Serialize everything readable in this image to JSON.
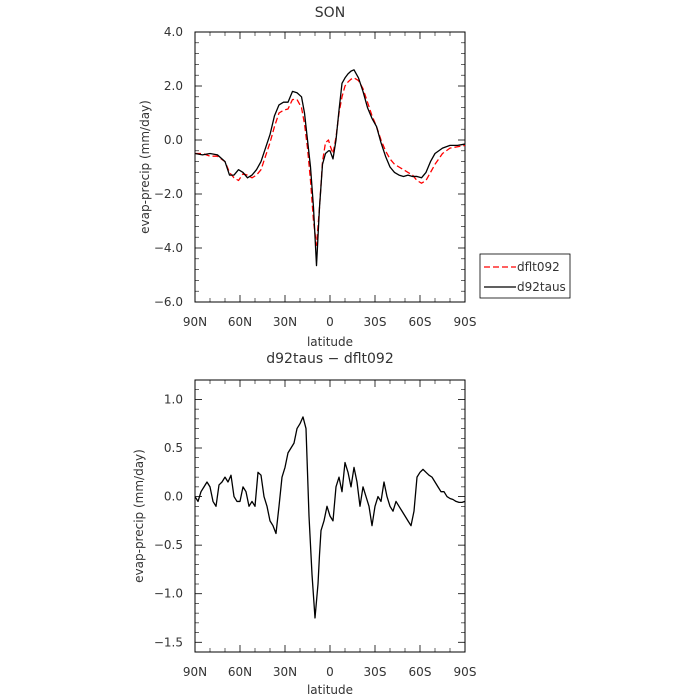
{
  "chart_data": [
    {
      "type": "line",
      "title": "SON",
      "xlabel": "latitude",
      "ylabel": "evap-precip (mm/day)",
      "xlim": [
        90,
        -90
      ],
      "ylim": [
        -6,
        4
      ],
      "x_ticks": [
        90,
        60,
        30,
        0,
        -30,
        -60,
        -90
      ],
      "x_tick_labels": [
        "90N",
        "60N",
        "30N",
        "0",
        "30S",
        "60S",
        "90S"
      ],
      "y_ticks": [
        4,
        2,
        0,
        -2,
        -4,
        -6
      ],
      "y_tick_labels": [
        "4.0",
        "2.0",
        "0.0",
        "−2.0",
        "−4.0",
        "−6.0"
      ],
      "legend_position": "outside-right-bottom",
      "series": [
        {
          "name": "dflt092",
          "color": "#ff0000",
          "dash": "dashed",
          "x": [
            90,
            85,
            80,
            75,
            70,
            67,
            64,
            61,
            58,
            55,
            52,
            49,
            46,
            43,
            40,
            37,
            34,
            31,
            28,
            25,
            22,
            19,
            17,
            15,
            13,
            11,
            9,
            7,
            5,
            3,
            1,
            0,
            -2,
            -4,
            -6,
            -8,
            -10,
            -12,
            -14,
            -16,
            -19,
            -22,
            -25,
            -28,
            -31,
            -34,
            -37,
            -40,
            -43,
            -46,
            -49,
            -52,
            -55,
            -58,
            -61,
            -64,
            -67,
            -70,
            -75,
            -80,
            -85,
            -90
          ],
          "y": [
            -0.5,
            -0.5,
            -0.6,
            -0.6,
            -0.8,
            -1.2,
            -1.4,
            -1.5,
            -1.25,
            -1.3,
            -1.4,
            -1.3,
            -1.1,
            -0.6,
            -0.1,
            0.5,
            1.0,
            1.1,
            1.15,
            1.5,
            1.5,
            1.2,
            0.6,
            -0.3,
            -1.5,
            -3.0,
            -3.9,
            -2.5,
            -0.8,
            -0.1,
            0.0,
            -0.2,
            -0.5,
            0.1,
            1.0,
            1.6,
            2.0,
            2.15,
            2.25,
            2.3,
            2.2,
            1.9,
            1.4,
            0.9,
            0.5,
            0.0,
            -0.4,
            -0.7,
            -0.9,
            -1.0,
            -1.1,
            -1.2,
            -1.3,
            -1.5,
            -1.6,
            -1.5,
            -1.2,
            -0.9,
            -0.5,
            -0.3,
            -0.25,
            -0.2
          ]
        },
        {
          "name": "d92taus",
          "color": "#000000",
          "dash": "solid",
          "x": [
            90,
            85,
            80,
            75,
            70,
            67,
            64,
            61,
            58,
            55,
            52,
            49,
            46,
            43,
            40,
            37,
            34,
            31,
            28,
            25,
            22,
            19,
            17,
            15,
            13,
            11,
            9,
            7,
            5,
            3,
            1,
            0,
            -2,
            -4,
            -6,
            -8,
            -10,
            -12,
            -14,
            -16,
            -19,
            -22,
            -25,
            -28,
            -31,
            -34,
            -37,
            -40,
            -43,
            -46,
            -49,
            -52,
            -55,
            -58,
            -61,
            -64,
            -67,
            -70,
            -75,
            -80,
            -85,
            -90
          ],
          "y": [
            -0.5,
            -0.55,
            -0.5,
            -0.55,
            -0.8,
            -1.3,
            -1.3,
            -1.1,
            -1.2,
            -1.4,
            -1.3,
            -1.1,
            -0.8,
            -0.3,
            0.2,
            0.9,
            1.3,
            1.4,
            1.4,
            1.8,
            1.75,
            1.6,
            1.0,
            0.0,
            -1.0,
            -2.5,
            -4.65,
            -2.5,
            -0.9,
            -0.5,
            -0.4,
            -0.4,
            -0.7,
            0.0,
            1.1,
            2.1,
            2.3,
            2.45,
            2.55,
            2.6,
            2.3,
            1.8,
            1.2,
            0.8,
            0.5,
            -0.1,
            -0.6,
            -1.0,
            -1.2,
            -1.3,
            -1.35,
            -1.3,
            -1.35,
            -1.35,
            -1.4,
            -1.2,
            -0.8,
            -0.5,
            -0.3,
            -0.2,
            -0.2,
            -0.15
          ]
        }
      ]
    },
    {
      "type": "line",
      "title": "d92taus − dflt092",
      "xlabel": "latitude",
      "ylabel": "evap-precip (mm/day)",
      "xlim": [
        90,
        -90
      ],
      "ylim": [
        -1.6,
        1.2
      ],
      "x_ticks": [
        90,
        60,
        30,
        0,
        -30,
        -60,
        -90
      ],
      "x_tick_labels": [
        "90N",
        "60N",
        "30N",
        "0",
        "30S",
        "60S",
        "90S"
      ],
      "y_ticks": [
        1.0,
        0.5,
        0.0,
        -0.5,
        -1.0,
        -1.5
      ],
      "y_tick_labels": [
        "1.0",
        "0.5",
        "0.0",
        "−0.5",
        "−1.0",
        "−1.5"
      ],
      "series": [
        {
          "color": "#000000",
          "dash": "solid",
          "x": [
            90,
            88,
            86,
            84,
            82,
            80,
            78,
            76,
            74,
            72,
            70,
            68,
            66,
            64,
            62,
            60,
            58,
            56,
            54,
            52,
            50,
            48,
            46,
            44,
            42,
            40,
            38,
            36,
            34,
            32,
            30,
            28,
            26,
            24,
            22,
            20,
            18,
            16,
            14,
            12,
            10,
            8,
            7,
            6,
            4,
            2,
            0,
            -2,
            -4,
            -6,
            -8,
            -10,
            -12,
            -14,
            -16,
            -18,
            -20,
            -22,
            -24,
            -26,
            -28,
            -30,
            -32,
            -34,
            -36,
            -38,
            -40,
            -42,
            -44,
            -46,
            -48,
            -50,
            -52,
            -54,
            -56,
            -58,
            -60,
            -62,
            -64,
            -66,
            -68,
            -70,
            -72,
            -74,
            -76,
            -78,
            -80,
            -82,
            -84,
            -86,
            -88,
            -90
          ],
          "y": [
            0.0,
            -0.05,
            0.05,
            0.1,
            0.15,
            0.1,
            -0.05,
            -0.1,
            0.12,
            0.15,
            0.2,
            0.15,
            0.22,
            0.0,
            -0.05,
            -0.05,
            0.1,
            0.05,
            -0.1,
            -0.05,
            -0.1,
            0.25,
            0.22,
            0.0,
            -0.1,
            -0.25,
            -0.3,
            -0.38,
            -0.1,
            0.2,
            0.3,
            0.45,
            0.5,
            0.55,
            0.7,
            0.75,
            0.82,
            0.7,
            -0.2,
            -0.8,
            -1.25,
            -0.9,
            -0.6,
            -0.35,
            -0.25,
            -0.1,
            -0.2,
            -0.25,
            0.1,
            0.2,
            0.05,
            0.35,
            0.25,
            0.1,
            0.3,
            0.15,
            -0.1,
            0.1,
            0.0,
            -0.1,
            -0.3,
            -0.1,
            0.0,
            -0.05,
            0.15,
            0.0,
            -0.1,
            -0.15,
            -0.05,
            -0.1,
            -0.15,
            -0.2,
            -0.25,
            -0.3,
            -0.15,
            0.2,
            0.25,
            0.28,
            0.25,
            0.22,
            0.2,
            0.15,
            0.1,
            0.05,
            0.05,
            0.0,
            -0.02,
            -0.03,
            -0.05,
            -0.06,
            -0.06,
            -0.05
          ]
        }
      ]
    }
  ],
  "legend": {
    "items": [
      {
        "name": "dflt092",
        "color": "#ff0000",
        "dash": "dashed"
      },
      {
        "name": "d92taus",
        "color": "#000000",
        "dash": "solid"
      }
    ]
  }
}
